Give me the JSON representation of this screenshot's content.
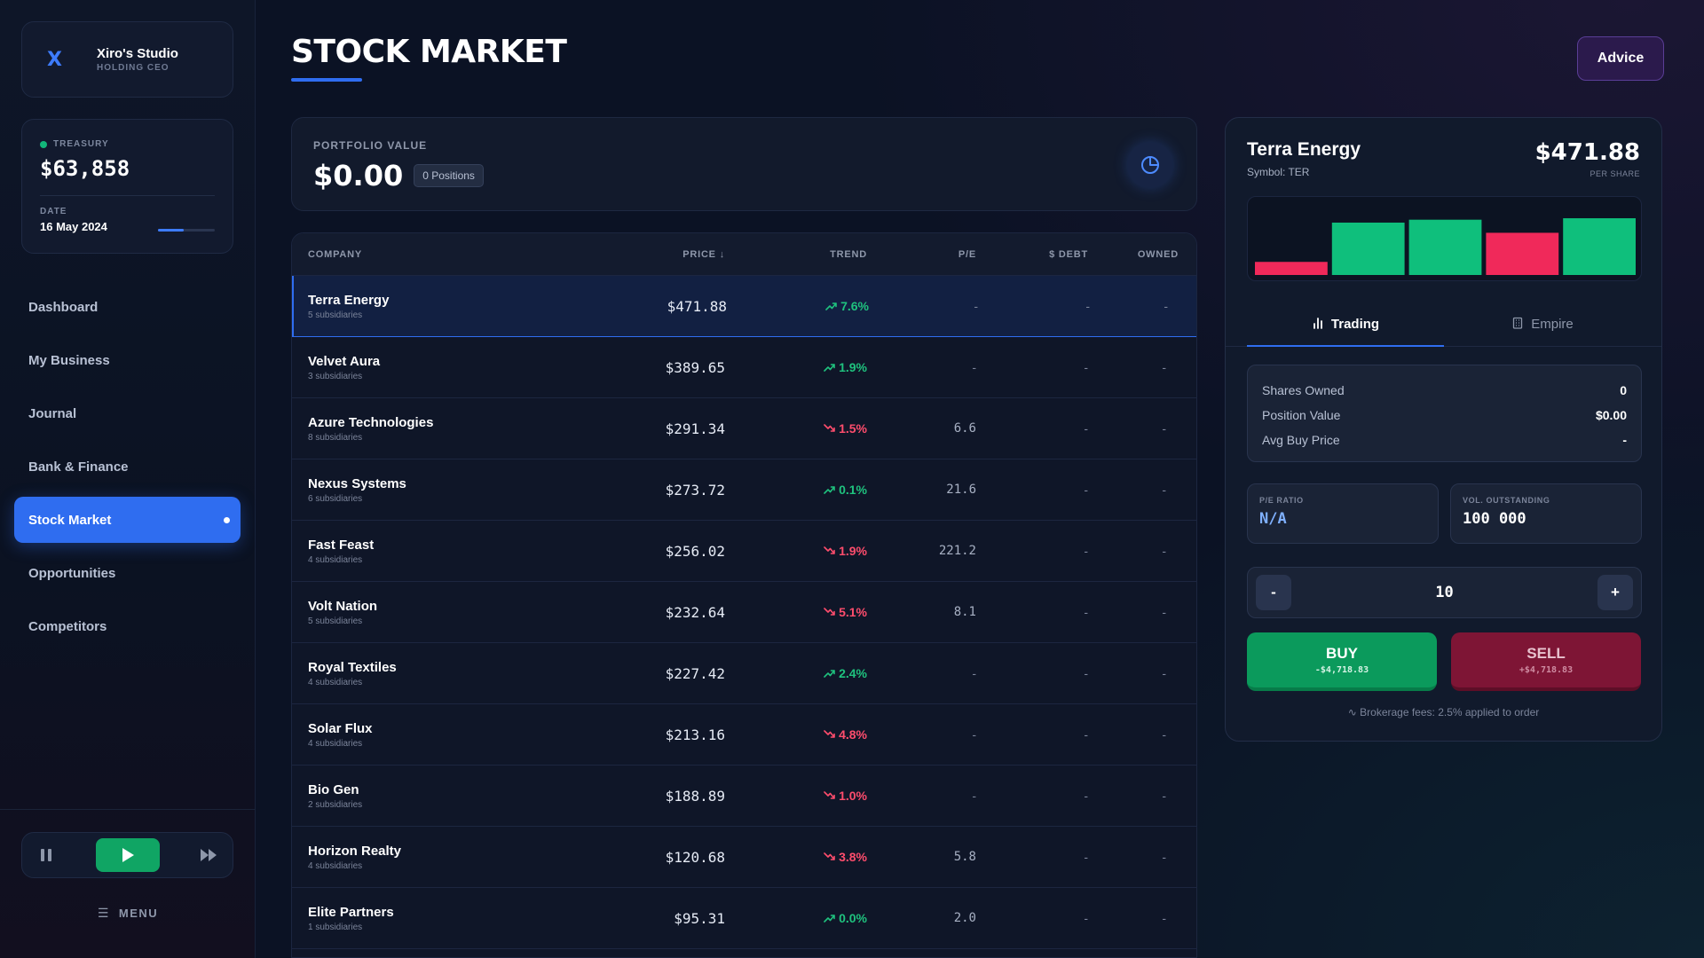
{
  "sidebar": {
    "studio": {
      "logo": "X",
      "name": "Xiro's Studio",
      "role": "HOLDING CEO"
    },
    "treasury": {
      "label": "TREASURY",
      "value": "$63,858",
      "date_label": "DATE",
      "date": "16 May 2024",
      "date_progress": 0.45
    },
    "nav": [
      {
        "label": "Dashboard",
        "active": false
      },
      {
        "label": "My Business",
        "active": false
      },
      {
        "label": "Journal",
        "active": false
      },
      {
        "label": "Bank & Finance",
        "active": false
      },
      {
        "label": "Stock Market",
        "active": true
      },
      {
        "label": "Opportunities",
        "active": false
      },
      {
        "label": "Competitors",
        "active": false
      }
    ],
    "menu_label": "MENU"
  },
  "header": {
    "title": "STOCK MARKET",
    "advice_label": "Advice"
  },
  "portfolio": {
    "label": "PORTFOLIO VALUE",
    "value": "$0.00",
    "positions": "0 Positions"
  },
  "table": {
    "columns": {
      "company": "COMPANY",
      "price": "PRICE",
      "trend": "TREND",
      "pe": "P/E",
      "debt": "DEBT",
      "owned": "OWNED"
    },
    "rows": [
      {
        "name": "Terra Energy",
        "subs": "5 subsidiaries",
        "price": "$471.88",
        "trend": "7.6%",
        "dir": "up",
        "pe": "-",
        "debt": "-",
        "owned": "-",
        "selected": true
      },
      {
        "name": "Velvet Aura",
        "subs": "3 subsidiaries",
        "price": "$389.65",
        "trend": "1.9%",
        "dir": "up",
        "pe": "-",
        "debt": "-",
        "owned": "-"
      },
      {
        "name": "Azure Technologies",
        "subs": "8 subsidiaries",
        "price": "$291.34",
        "trend": "1.5%",
        "dir": "down",
        "pe": "6.6",
        "debt": "-",
        "owned": "-"
      },
      {
        "name": "Nexus Systems",
        "subs": "6 subsidiaries",
        "price": "$273.72",
        "trend": "0.1%",
        "dir": "up",
        "pe": "21.6",
        "debt": "-",
        "owned": "-"
      },
      {
        "name": "Fast Feast",
        "subs": "4 subsidiaries",
        "price": "$256.02",
        "trend": "1.9%",
        "dir": "down",
        "pe": "221.2",
        "debt": "-",
        "owned": "-"
      },
      {
        "name": "Volt Nation",
        "subs": "5 subsidiaries",
        "price": "$232.64",
        "trend": "5.1%",
        "dir": "down",
        "pe": "8.1",
        "debt": "-",
        "owned": "-"
      },
      {
        "name": "Royal Textiles",
        "subs": "4 subsidiaries",
        "price": "$227.42",
        "trend": "2.4%",
        "dir": "up",
        "pe": "-",
        "debt": "-",
        "owned": "-"
      },
      {
        "name": "Solar Flux",
        "subs": "4 subsidiaries",
        "price": "$213.16",
        "trend": "4.8%",
        "dir": "down",
        "pe": "-",
        "debt": "-",
        "owned": "-"
      },
      {
        "name": "Bio Gen",
        "subs": "2 subsidiaries",
        "price": "$188.89",
        "trend": "1.0%",
        "dir": "down",
        "pe": "-",
        "debt": "-",
        "owned": "-"
      },
      {
        "name": "Horizon Realty",
        "subs": "4 subsidiaries",
        "price": "$120.68",
        "trend": "3.8%",
        "dir": "down",
        "pe": "5.8",
        "debt": "-",
        "owned": "-"
      },
      {
        "name": "Elite Partners",
        "subs": "1 subsidiaries",
        "price": "$95.31",
        "trend": "0.0%",
        "dir": "up",
        "pe": "2.0",
        "debt": "-",
        "owned": "-"
      }
    ]
  },
  "detail": {
    "name": "Terra Energy",
    "symbol": "Symbol: TER",
    "price": "$471.88",
    "per_share": "PER SHARE",
    "candles": [
      {
        "dir": "down",
        "level": 0.18
      },
      {
        "dir": "up",
        "level": 0.72
      },
      {
        "dir": "up",
        "level": 0.76
      },
      {
        "dir": "down",
        "level": 0.58
      },
      {
        "dir": "up",
        "level": 0.78
      }
    ],
    "tabs": [
      {
        "label": "Trading",
        "active": true
      },
      {
        "label": "Empire",
        "active": false
      }
    ],
    "stats": [
      {
        "label": "Shares Owned",
        "value": "0"
      },
      {
        "label": "Position Value",
        "value": "$0.00"
      },
      {
        "label": "Avg Buy Price",
        "value": "-"
      }
    ],
    "pe_label": "P/E RATIO",
    "pe_value": "N/A",
    "vol_label": "VOL. OUTSTANDING",
    "vol_value": "100 000",
    "quantity": "10",
    "minus": "-",
    "plus": "+",
    "buy_label": "BUY",
    "buy_sub": "-$4,718.83",
    "sell_label": "SELL",
    "sell_sub": "+$4,718.83",
    "fees": "Brokerage fees: 2.5% applied to order"
  },
  "colors": {
    "accent": "#2f6df0",
    "up": "#1fc27e",
    "down": "#ff4d6d",
    "candle_up": "#0fbf7c",
    "candle_down": "#f0295a"
  }
}
